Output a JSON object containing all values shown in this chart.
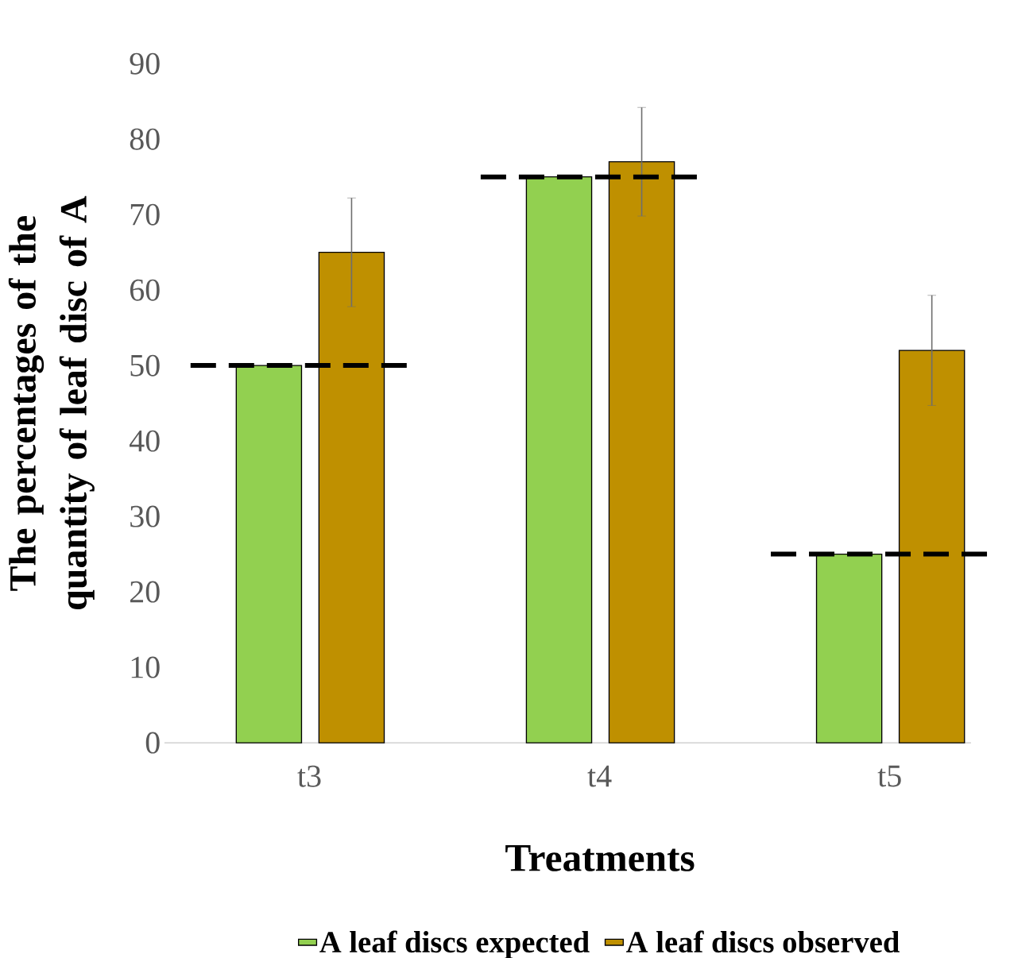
{
  "chart_data": {
    "type": "bar",
    "xlabel": "Treatments",
    "ylabel": "The percentages of the quantity of leaf disc of A",
    "categories": [
      "t3",
      "t4",
      "t5"
    ],
    "series": [
      {
        "name": "A leaf discs expected",
        "color": "#92d050",
        "values": [
          50,
          75,
          25
        ]
      },
      {
        "name": "A leaf discs observed",
        "color": "#bf9000",
        "values": [
          65,
          77,
          52
        ],
        "errors": [
          7.2,
          7.2,
          7.3
        ]
      }
    ],
    "ylim": [
      0,
      90
    ],
    "yticks": [
      0,
      10,
      20,
      30,
      40,
      50,
      60,
      70,
      80,
      90
    ],
    "ref_lines": [
      {
        "axis": "y",
        "value": 50,
        "color": "#000000",
        "line_style": "dashed"
      },
      {
        "axis": "y",
        "value": 75,
        "color": "#000000",
        "line_style": "dashed"
      },
      {
        "axis": "y",
        "value": 25,
        "color": "#000000",
        "line_style": "dashed"
      }
    ],
    "grid": false,
    "legend": "bottom"
  }
}
